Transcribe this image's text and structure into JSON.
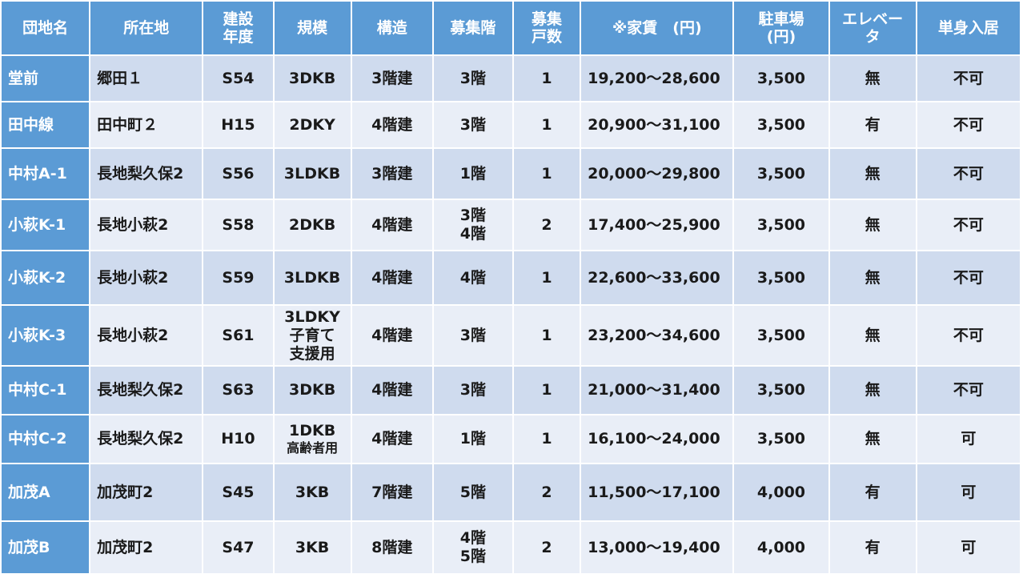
{
  "header": {
    "name": "団地名",
    "location": "所在地",
    "built": [
      "建設",
      "年度"
    ],
    "size": "規模",
    "structure": "構造",
    "floor": "募集階",
    "units": [
      "募集",
      "戸数"
    ],
    "rent": "※家賃　(円)",
    "parking": [
      "駐車場",
      "(円)"
    ],
    "elevator": [
      "エレベー",
      "タ"
    ],
    "single": "単身入居"
  },
  "rows": [
    {
      "name": "堂前",
      "location": "郷田１",
      "built": "S54",
      "size": [
        "3DKB"
      ],
      "structure": "3階建",
      "floor": [
        "3階"
      ],
      "units": "1",
      "rent": "19,200～28,600",
      "parking": "3,500",
      "elevator": "無",
      "single": "不可"
    },
    {
      "name": "田中線",
      "location": "田中町２",
      "built": "H15",
      "size": [
        "2DKY"
      ],
      "structure": "4階建",
      "floor": [
        "3階"
      ],
      "units": "1",
      "rent": "20,900～31,100",
      "parking": "3,500",
      "elevator": "有",
      "single": "不可"
    },
    {
      "name": "中村A-1",
      "location": "長地梨久保2",
      "built": "S56",
      "size": [
        "3LDKB"
      ],
      "structure": "3階建",
      "floor": [
        "1階"
      ],
      "units": "1",
      "rent": "20,000～29,800",
      "parking": "3,500",
      "elevator": "無",
      "single": "不可"
    },
    {
      "name": "小萩K-1",
      "location": "長地小萩2",
      "built": "S58",
      "size": [
        "2DKB"
      ],
      "structure": "4階建",
      "floor": [
        "3階",
        "4階"
      ],
      "units": "2",
      "rent": "17,400～25,900",
      "parking": "3,500",
      "elevator": "無",
      "single": "不可"
    },
    {
      "name": "小萩K-2",
      "location": "長地小萩2",
      "built": "S59",
      "size": [
        "3LDKB"
      ],
      "structure": "4階建",
      "floor": [
        "4階"
      ],
      "units": "1",
      "rent": "22,600～33,600",
      "parking": "3,500",
      "elevator": "無",
      "single": "不可"
    },
    {
      "name": "小萩K-3",
      "location": "長地小萩2",
      "built": "S61",
      "size": [
        "3LDKY",
        "子育て",
        "支援用"
      ],
      "structure": "4階建",
      "floor": [
        "3階"
      ],
      "units": "1",
      "rent": "23,200～34,600",
      "parking": "3,500",
      "elevator": "無",
      "single": "不可"
    },
    {
      "name": "中村C-1",
      "location": "長地梨久保2",
      "built": "S63",
      "size": [
        "3DKB"
      ],
      "structure": "4階建",
      "floor": [
        "3階"
      ],
      "units": "1",
      "rent": "21,000～31,400",
      "parking": "3,500",
      "elevator": "無",
      "single": "不可"
    },
    {
      "name": "中村C-2",
      "location": "長地梨久保2",
      "built": "H10",
      "size": [
        "1DKB",
        "高齢者用"
      ],
      "structure": "4階建",
      "floor": [
        "1階"
      ],
      "units": "1",
      "rent": "16,100～24,000",
      "parking": "3,500",
      "elevator": "無",
      "single": "可"
    },
    {
      "name": "加茂A",
      "location": "加茂町2",
      "built": "S45",
      "size": [
        "3KB"
      ],
      "structure": "7階建",
      "floor": [
        "5階"
      ],
      "units": "2",
      "rent": "11,500～17,100",
      "parking": "4,000",
      "elevator": "有",
      "single": "可"
    },
    {
      "name": "加茂B",
      "location": "加茂町2",
      "built": "S47",
      "size": [
        "3KB"
      ],
      "structure": "8階建",
      "floor": [
        "4階",
        "5階"
      ],
      "units": "2",
      "rent": "13,000～19,400",
      "parking": "4,000",
      "elevator": "有",
      "single": "可"
    }
  ]
}
